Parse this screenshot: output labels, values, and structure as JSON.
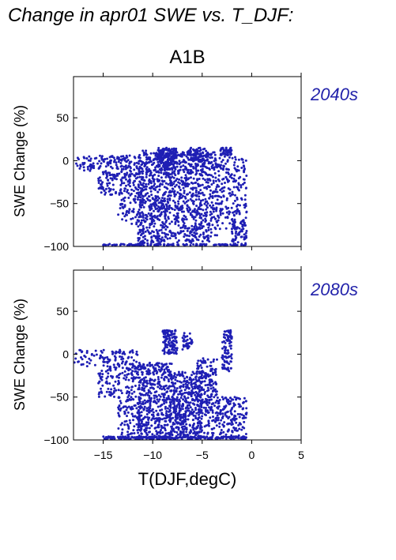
{
  "title": "Change in apr01 SWE vs. T_DJF:",
  "scenario": "A1B",
  "colors": {
    "points": "#1f1fb4",
    "period_label": "#2222aa",
    "axes": "#000000"
  },
  "chart_data": [
    {
      "type": "scatter",
      "panel": "2040s",
      "ylabel": "SWE Change (%)",
      "xlabel": "",
      "xlim": [
        -18,
        5
      ],
      "ylim": [
        -100,
        98
      ],
      "xticks": [
        -15,
        -10,
        -5,
        0,
        5
      ],
      "yticks": [
        -100,
        -50,
        0,
        50
      ],
      "ytick_labels": [
        "−100",
        "−50",
        "0",
        "50"
      ],
      "xtick_labels": [],
      "point_count_approx": 2200,
      "clusters": [
        {
          "x": [
            -18,
            -15.5
          ],
          "y": [
            -12,
            5
          ],
          "n": 40,
          "note": "sparse left tail"
        },
        {
          "x": [
            -15.5,
            -11.5
          ],
          "y": [
            -40,
            6
          ],
          "n": 220
        },
        {
          "x": [
            -13.5,
            -11
          ],
          "y": [
            -75,
            -40
          ],
          "n": 70
        },
        {
          "x": [
            -11.5,
            -8.5
          ],
          "y": [
            -100,
            12
          ],
          "n": 520
        },
        {
          "x": [
            -9.5,
            -7.5
          ],
          "y": [
            -10,
            15
          ],
          "n": 150
        },
        {
          "x": [
            -8.5,
            -5.5
          ],
          "y": [
            -100,
            10
          ],
          "n": 420
        },
        {
          "x": [
            -6.5,
            -4.5
          ],
          "y": [
            0,
            15
          ],
          "n": 60
        },
        {
          "x": [
            -5.5,
            -3.5
          ],
          "y": [
            -95,
            10
          ],
          "n": 260
        },
        {
          "x": [
            -3.2,
            -2.0
          ],
          "y": [
            6,
            15
          ],
          "n": 50
        },
        {
          "x": [
            -3.5,
            -0.5
          ],
          "y": [
            -80,
            5
          ],
          "n": 200
        },
        {
          "x": [
            -2.0,
            -0.5
          ],
          "y": [
            -100,
            -70
          ],
          "n": 70
        },
        {
          "x": [
            -15,
            -1
          ],
          "y": [
            -100,
            -97
          ],
          "n": 140,
          "note": "floor at -100"
        }
      ]
    },
    {
      "type": "scatter",
      "panel": "2080s",
      "ylabel": "SWE Change (%)",
      "xlabel": "T(DJF,degC)",
      "xlim": [
        -18,
        5
      ],
      "ylim": [
        -100,
        98
      ],
      "xticks": [
        -15,
        -10,
        -5,
        0,
        5
      ],
      "yticks": [
        -100,
        -50,
        0,
        50
      ],
      "xtick_labels": [
        "−15",
        "−10",
        "−5",
        "0",
        "5"
      ],
      "ytick_labels": [
        "−100",
        "−50",
        "0",
        "50"
      ],
      "point_count_approx": 2200,
      "clusters": [
        {
          "x": [
            -18,
            -15.5
          ],
          "y": [
            -15,
            5
          ],
          "n": 30,
          "note": "sparse left tail"
        },
        {
          "x": [
            -15.5,
            -11.5
          ],
          "y": [
            -50,
            5
          ],
          "n": 200
        },
        {
          "x": [
            -13.5,
            -11
          ],
          "y": [
            -100,
            -50
          ],
          "n": 110
        },
        {
          "x": [
            -11.5,
            -8
          ],
          "y": [
            -100,
            -10
          ],
          "n": 480
        },
        {
          "x": [
            -9,
            -7.5
          ],
          "y": [
            0,
            28
          ],
          "n": 120
        },
        {
          "x": [
            -8,
            -5
          ],
          "y": [
            -100,
            -20
          ],
          "n": 420
        },
        {
          "x": [
            -7,
            -6
          ],
          "y": [
            5,
            25
          ],
          "n": 35
        },
        {
          "x": [
            -5.5,
            -3.5
          ],
          "y": [
            -100,
            -5
          ],
          "n": 220
        },
        {
          "x": [
            -3,
            -2
          ],
          "y": [
            -20,
            28
          ],
          "n": 90
        },
        {
          "x": [
            -3.5,
            -0.5
          ],
          "y": [
            -100,
            -50
          ],
          "n": 170
        },
        {
          "x": [
            -15,
            -0.5
          ],
          "y": [
            -100,
            -96
          ],
          "n": 260,
          "note": "floor at -100"
        }
      ]
    }
  ]
}
